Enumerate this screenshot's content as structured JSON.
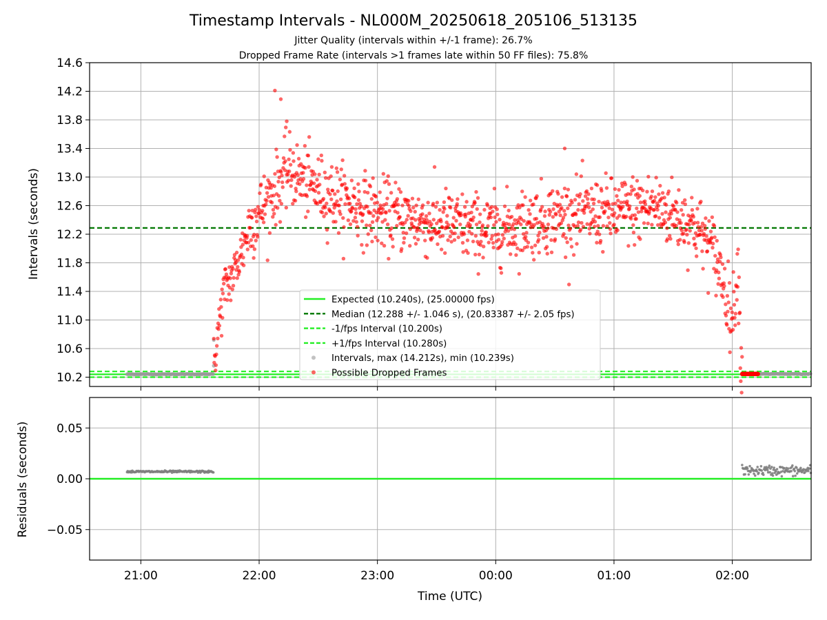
{
  "figure": {
    "title": "Timestamp Intervals - NL000M_20250618_205106_513135",
    "subtitle1": "Jitter Quality (intervals within +/-1 frame): 26.7%",
    "subtitle2": "Dropped Frame Rate (intervals >1 frames late within 50 FF files): 75.8%"
  },
  "chart_data": [
    {
      "type": "scatter",
      "title": "Timestamp Intervals - NL000M_20250618_205106_513135",
      "ylabel": "Intervals (seconds)",
      "xlabel": "",
      "ylim": [
        10.07,
        14.6
      ],
      "yticks": [
        10.2,
        10.6,
        11.0,
        11.4,
        11.8,
        12.2,
        12.6,
        13.0,
        13.4,
        13.8,
        14.2,
        14.6
      ],
      "grid": true,
      "legend_position": "lower-center",
      "reference_lines": [
        {
          "name": "Expected (10.240s), (25.00000 fps)",
          "y": 10.24,
          "color": "#22ee22",
          "style": "solid"
        },
        {
          "name": "Median (12.288 +/- 1.046 s), (20.83387 +/- 2.05 fps)",
          "y": 12.288,
          "color": "#007700",
          "style": "dashed"
        },
        {
          "name": "-1/fps Interval (10.200s)",
          "y": 10.2,
          "color": "#22ee22",
          "style": "dashed"
        },
        {
          "name": "+1/fps Interval (10.280s)",
          "y": 10.28,
          "color": "#22ee22",
          "style": "dashed"
        }
      ],
      "series": [
        {
          "name": "Intervals, max (14.212s), min (10.239s)",
          "color": "#999999",
          "segments": [
            {
              "x_range": [
                "20:53",
                "21:37"
              ],
              "y": 10.242
            },
            {
              "x_range": [
                "02:05",
                "02:40"
              ],
              "y": 10.245
            }
          ],
          "points": [
            {
              "x": "21:37",
              "y": 10.72
            },
            {
              "x": "21:37",
              "y": 10.36
            }
          ]
        },
        {
          "name": "Possible Dropped Frames",
          "color": "#ff0000",
          "envelope": [
            {
              "x": "21:37",
              "y": 10.4
            },
            {
              "x": "21:42",
              "y": 11.4
            },
            {
              "x": "21:48",
              "y": 11.7
            },
            {
              "x": "21:55",
              "y": 12.3
            },
            {
              "x": "22:05",
              "y": 12.7
            },
            {
              "x": "22:15",
              "y": 13.1
            },
            {
              "x": "22:25",
              "y": 12.9
            },
            {
              "x": "22:40",
              "y": 12.7
            },
            {
              "x": "23:00",
              "y": 12.5
            },
            {
              "x": "23:30",
              "y": 12.35
            },
            {
              "x": "00:00",
              "y": 12.25
            },
            {
              "x": "00:30",
              "y": 12.45
            },
            {
              "x": "01:00",
              "y": 12.5
            },
            {
              "x": "01:20",
              "y": 12.6
            },
            {
              "x": "01:40",
              "y": 12.35
            },
            {
              "x": "01:50",
              "y": 12.0
            },
            {
              "x": "01:55",
              "y": 11.6
            },
            {
              "x": "02:00",
              "y": 11.0
            },
            {
              "x": "02:03",
              "y": 11.8
            },
            {
              "x": "02:04",
              "y": 10.7
            },
            {
              "x": "02:05",
              "y": 10.36
            }
          ],
          "dropped_cluster": {
            "x_range": [
              "02:05",
              "02:13"
            ],
            "y": 10.245
          },
          "max": 14.212
        }
      ]
    },
    {
      "type": "scatter",
      "ylabel": "Residuals (seconds)",
      "xlabel": "Time (UTC)",
      "ylim": [
        -0.08,
        0.08
      ],
      "yticks": [
        0.05,
        0.0,
        -0.05
      ],
      "ytick_labels": [
        "0.05",
        "0.00",
        "−0.05"
      ],
      "xticks": [
        "21:00",
        "22:00",
        "23:00",
        "00:00",
        "01:00",
        "02:00"
      ],
      "xrange": [
        "20:34",
        "02:40"
      ],
      "grid": true,
      "reference_line": {
        "y": 0.0,
        "color": "#22ee22"
      },
      "series": [
        {
          "name": "residuals",
          "color": "#808080",
          "segments": [
            {
              "x_range": [
                "20:53",
                "21:37"
              ],
              "y": 0.007
            },
            {
              "x_range": [
                "02:05",
                "02:40"
              ],
              "y": 0.008
            }
          ]
        }
      ]
    }
  ]
}
